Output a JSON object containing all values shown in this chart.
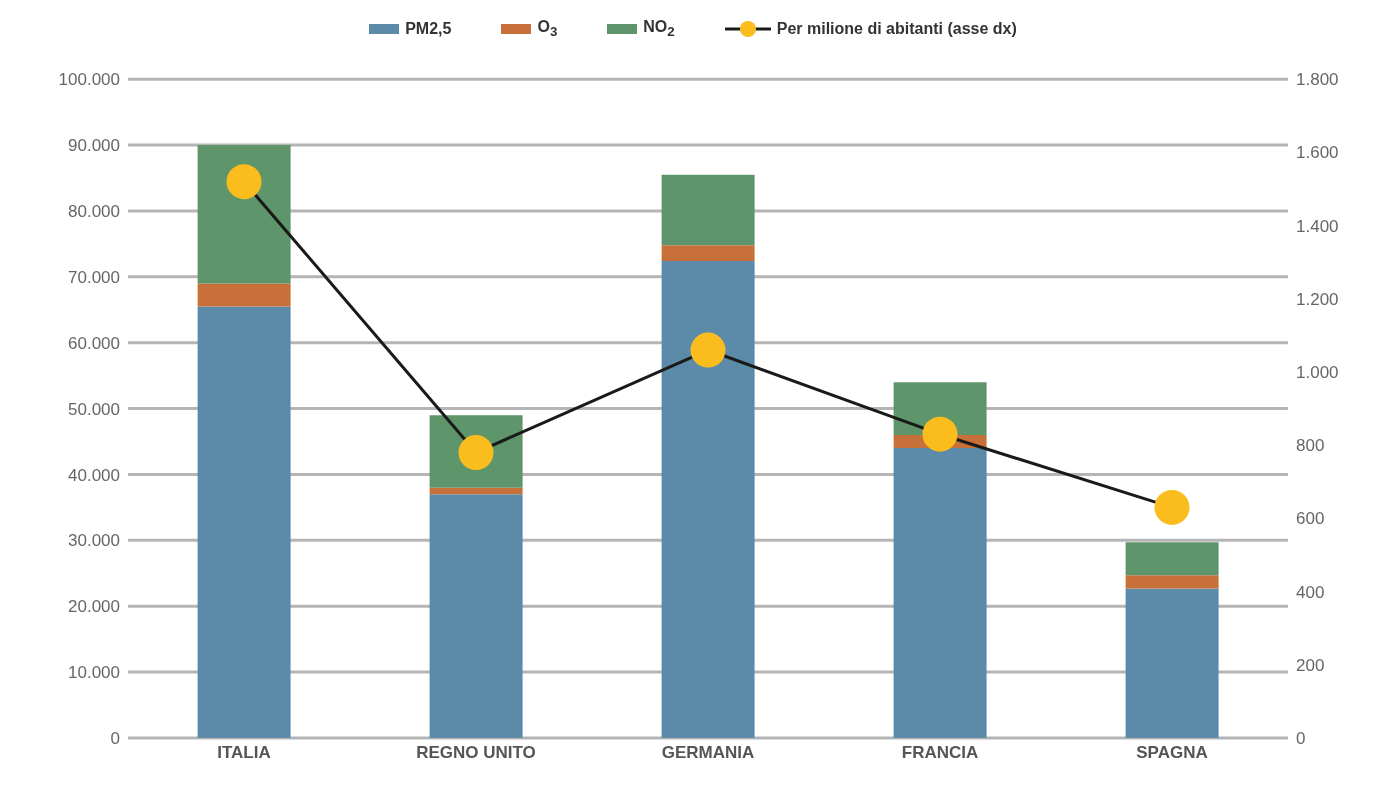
{
  "chart_data": {
    "type": "bar",
    "stacked": true,
    "categories": [
      "ITALIA",
      "REGNO UNITO",
      "GERMANIA",
      "FRANCIA",
      "SPAGNA"
    ],
    "series": [
      {
        "name": "PM2,5",
        "color": "#5b8ba8",
        "values": [
          65500,
          37000,
          72400,
          44000,
          22700
        ]
      },
      {
        "name": "O$_{3}$",
        "color": "#c8703a",
        "values": [
          3500,
          1000,
          2400,
          2000,
          2000
        ]
      },
      {
        "name": "NO$_{2}$",
        "color": "#5e956a",
        "values": [
          21000,
          11000,
          10700,
          8000,
          5000
        ]
      },
      {
        "name": "Per milione di abitanti (asse dx)",
        "type": "line",
        "axis": "y2",
        "color": "#1a1a1a",
        "marker": "circle",
        "values": [
          1520,
          780,
          1060,
          830,
          630
        ]
      }
    ],
    "ylim": [
      0,
      100000
    ],
    "yticks": [
      {
        "value": 0,
        "label": "0"
      },
      {
        "value": 10000,
        "label": "10.000"
      },
      {
        "value": 20000,
        "label": "20.000"
      },
      {
        "value": 30000,
        "label": "30.000"
      },
      {
        "value": 40000,
        "label": "40.000"
      },
      {
        "value": 50000,
        "label": "50.000"
      },
      {
        "value": 60000,
        "label": "60.000"
      },
      {
        "value": 70000,
        "label": "70.000"
      },
      {
        "value": 80000,
        "label": "80.000"
      },
      {
        "value": 90000,
        "label": "90.000"
      },
      {
        "value": 100000,
        "label": "100.000"
      }
    ],
    "y2lim": [
      0,
      1800
    ],
    "y2ticks": [
      0,
      200,
      400,
      600,
      800,
      {
        "value": 1000,
        "label": "1.000"
      },
      {
        "value": 1200,
        "label": "1.200"
      },
      {
        "value": 1400,
        "label": "1.400"
      },
      {
        "value": 1600,
        "label": "1.600"
      },
      {
        "value": 1800,
        "label": "1.800"
      }
    ],
    "grid": "y",
    "legend": "top"
  }
}
